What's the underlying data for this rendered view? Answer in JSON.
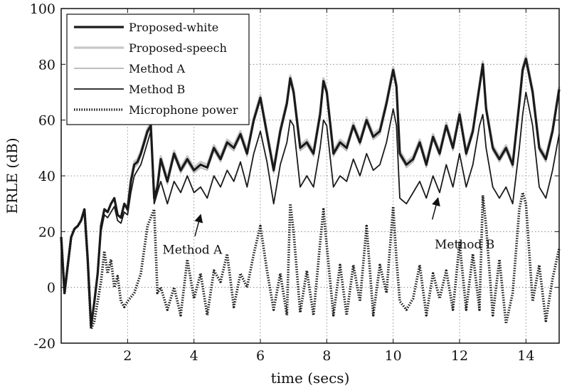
{
  "chart_data": {
    "type": "line",
    "xlabel": "time (secs)",
    "ylabel": "ERLE (dB)",
    "xlim": [
      0,
      15
    ],
    "ylim": [
      -20,
      100
    ],
    "xticks": [
      2,
      4,
      6,
      8,
      10,
      12,
      14
    ],
    "yticks": [
      -20,
      0,
      20,
      40,
      60,
      80,
      100
    ],
    "grid": true,
    "legend_position": "top-left",
    "series": [
      {
        "name": "Proposed-white",
        "color": "#1a1a1a",
        "style": "solid-thick",
        "x": [
          0,
          0.1,
          0.2,
          0.3,
          0.4,
          0.5,
          0.6,
          0.7,
          0.8,
          0.9,
          1.0,
          1.1,
          1.2,
          1.3,
          1.4,
          1.5,
          1.6,
          1.7,
          1.8,
          1.9,
          2.0,
          2.1,
          2.2,
          2.3,
          2.4,
          2.5,
          2.6,
          2.7,
          2.8,
          2.9,
          3.0,
          3.2,
          3.4,
          3.6,
          3.8,
          4.0,
          4.2,
          4.4,
          4.6,
          4.8,
          5.0,
          5.2,
          5.4,
          5.6,
          5.8,
          6.0,
          6.2,
          6.4,
          6.6,
          6.8,
          6.9,
          7.0,
          7.2,
          7.4,
          7.6,
          7.8,
          7.9,
          8.0,
          8.2,
          8.4,
          8.6,
          8.8,
          9.0,
          9.2,
          9.4,
          9.6,
          9.8,
          10.0,
          10.1,
          10.2,
          10.4,
          10.6,
          10.8,
          11.0,
          11.2,
          11.4,
          11.6,
          11.8,
          12.0,
          12.2,
          12.4,
          12.6,
          12.7,
          12.8,
          13.0,
          13.2,
          13.4,
          13.6,
          13.8,
          13.9,
          14.0,
          14.2,
          14.4,
          14.6,
          14.8,
          15.0
        ],
        "y": [
          18,
          -2,
          8,
          18,
          21,
          22,
          24,
          28,
          10,
          -14,
          -5,
          5,
          22,
          28,
          27,
          30,
          32,
          26,
          25,
          30,
          28,
          38,
          44,
          45,
          48,
          52,
          56,
          58,
          32,
          36,
          46,
          38,
          48,
          42,
          46,
          42,
          44,
          43,
          50,
          46,
          52,
          50,
          55,
          48,
          60,
          68,
          55,
          42,
          56,
          66,
          75,
          70,
          50,
          52,
          48,
          62,
          74,
          70,
          48,
          52,
          50,
          58,
          52,
          60,
          54,
          56,
          66,
          78,
          72,
          48,
          44,
          46,
          52,
          44,
          54,
          48,
          58,
          50,
          62,
          48,
          56,
          72,
          80,
          64,
          50,
          46,
          50,
          44,
          66,
          78,
          82,
          70,
          50,
          46,
          56,
          71
        ]
      },
      {
        "name": "Proposed-speech",
        "color": "#c8c8c8",
        "style": "solid-thick",
        "x": [
          0,
          0.1,
          0.2,
          0.3,
          0.4,
          0.5,
          0.6,
          0.7,
          0.8,
          0.9,
          1.0,
          1.1,
          1.2,
          1.3,
          1.4,
          1.5,
          1.6,
          1.7,
          1.8,
          1.9,
          2.0,
          2.1,
          2.2,
          2.3,
          2.4,
          2.5,
          2.6,
          2.7,
          2.8,
          2.9,
          3.0,
          3.2,
          3.4,
          3.6,
          3.8,
          4.0,
          4.2,
          4.4,
          4.6,
          4.8,
          5.0,
          5.2,
          5.4,
          5.6,
          5.8,
          6.0,
          6.2,
          6.4,
          6.6,
          6.8,
          6.9,
          7.0,
          7.2,
          7.4,
          7.6,
          7.8,
          7.9,
          8.0,
          8.2,
          8.4,
          8.6,
          8.8,
          9.0,
          9.2,
          9.4,
          9.6,
          9.8,
          10.0,
          10.1,
          10.2,
          10.4,
          10.6,
          10.8,
          11.0,
          11.2,
          11.4,
          11.6,
          11.8,
          12.0,
          12.2,
          12.4,
          12.6,
          12.7,
          12.8,
          13.0,
          13.2,
          13.4,
          13.6,
          13.8,
          13.9,
          14.0,
          14.2,
          14.4,
          14.6,
          14.8,
          15.0
        ],
        "y": [
          18,
          -2,
          8,
          18,
          21,
          22,
          24,
          28,
          10,
          -14,
          -5,
          5,
          22,
          28,
          27,
          30,
          32,
          26,
          25,
          30,
          29,
          39,
          45,
          46,
          49,
          53,
          57,
          59,
          33,
          37,
          47,
          39,
          49,
          43,
          47,
          43,
          45,
          44,
          51,
          47,
          53,
          51,
          56,
          49,
          61,
          69,
          56,
          43,
          57,
          67,
          76,
          71,
          51,
          53,
          49,
          63,
          75,
          71,
          49,
          53,
          51,
          59,
          53,
          61,
          55,
          57,
          67,
          79,
          73,
          49,
          45,
          47,
          53,
          45,
          55,
          49,
          59,
          51,
          63,
          49,
          57,
          73,
          81,
          65,
          51,
          47,
          51,
          45,
          67,
          79,
          83,
          71,
          51,
          47,
          57,
          72
        ]
      },
      {
        "name": "Method A",
        "color": "#b4b4b4",
        "style": "solid-thin",
        "x": [
          0,
          0.1,
          0.2,
          0.3,
          0.4,
          0.5,
          0.6,
          0.7,
          0.8,
          0.9,
          1.0,
          1.1,
          1.2,
          1.3,
          1.4,
          1.5,
          1.6,
          1.7,
          1.8,
          1.9,
          2.0,
          2.1,
          2.2,
          2.3,
          2.4,
          2.5,
          2.6,
          2.7,
          2.8,
          2.9,
          3.0,
          3.2,
          3.4,
          3.6,
          3.8,
          4.0,
          4.2,
          4.4,
          4.6,
          4.8,
          5.0,
          5.2,
          5.4,
          5.6,
          5.8,
          6.0,
          6.2,
          6.4,
          6.6,
          6.8,
          6.9,
          7.0,
          7.2,
          7.4,
          7.6,
          7.8,
          7.9,
          8.0,
          8.2,
          8.4,
          8.6,
          8.8,
          9.0,
          9.2,
          9.4,
          9.6,
          9.8,
          10.0,
          10.1,
          10.2,
          10.4,
          10.6,
          10.8,
          11.0,
          11.2,
          11.4,
          11.6,
          11.8,
          12.0,
          12.2,
          12.4,
          12.6,
          12.7,
          12.8,
          13.0,
          13.2,
          13.4,
          13.6,
          13.8,
          13.9,
          14.0,
          14.2,
          14.4,
          14.6,
          14.8,
          15.0
        ],
        "y": [
          18,
          -2,
          8,
          18,
          21,
          22,
          24,
          28,
          10,
          -14,
          -5,
          5,
          22,
          28,
          27,
          30,
          32,
          26,
          25,
          30,
          27,
          37,
          43,
          44,
          47,
          51,
          55,
          57,
          31,
          35,
          45,
          37,
          47,
          41,
          45,
          41,
          43,
          42,
          49,
          45,
          51,
          49,
          54,
          47,
          59,
          67,
          54,
          41,
          55,
          65,
          74,
          69,
          49,
          51,
          47,
          61,
          73,
          69,
          47,
          51,
          49,
          57,
          51,
          59,
          53,
          55,
          65,
          77,
          71,
          47,
          43,
          45,
          51,
          43,
          53,
          47,
          57,
          49,
          61,
          47,
          55,
          71,
          79,
          63,
          49,
          45,
          49,
          43,
          65,
          77,
          81,
          69,
          49,
          45,
          55,
          70
        ]
      },
      {
        "name": "Method B",
        "color": "#1a1a1a",
        "style": "solid-thin",
        "x": [
          0,
          0.1,
          0.2,
          0.3,
          0.4,
          0.5,
          0.6,
          0.7,
          0.8,
          0.9,
          1.0,
          1.1,
          1.2,
          1.3,
          1.4,
          1.5,
          1.6,
          1.7,
          1.8,
          1.9,
          2.0,
          2.1,
          2.2,
          2.3,
          2.4,
          2.5,
          2.6,
          2.7,
          2.8,
          2.9,
          3.0,
          3.2,
          3.4,
          3.6,
          3.8,
          4.0,
          4.2,
          4.4,
          4.6,
          4.8,
          5.0,
          5.2,
          5.4,
          5.6,
          5.8,
          6.0,
          6.2,
          6.4,
          6.6,
          6.8,
          6.9,
          7.0,
          7.2,
          7.4,
          7.6,
          7.8,
          7.9,
          8.0,
          8.2,
          8.4,
          8.6,
          8.8,
          9.0,
          9.2,
          9.4,
          9.6,
          9.8,
          10.0,
          10.1,
          10.2,
          10.4,
          10.6,
          10.8,
          11.0,
          11.2,
          11.4,
          11.6,
          11.8,
          12.0,
          12.2,
          12.4,
          12.6,
          12.7,
          12.8,
          13.0,
          13.2,
          13.4,
          13.6,
          13.8,
          13.9,
          14.0,
          14.2,
          14.4,
          14.6,
          14.8,
          15.0
        ],
        "y": [
          18,
          -2,
          8,
          18,
          21,
          22,
          24,
          28,
          10,
          -14,
          -5,
          5,
          20,
          26,
          25,
          27,
          29,
          24,
          23,
          27,
          26,
          34,
          40,
          42,
          44,
          48,
          52,
          56,
          30,
          34,
          38,
          30,
          38,
          34,
          40,
          34,
          36,
          32,
          40,
          36,
          42,
          38,
          45,
          36,
          48,
          56,
          45,
          30,
          44,
          52,
          60,
          58,
          36,
          40,
          36,
          50,
          60,
          58,
          36,
          40,
          38,
          46,
          40,
          48,
          42,
          44,
          52,
          64,
          58,
          32,
          30,
          34,
          38,
          32,
          40,
          34,
          44,
          36,
          48,
          36,
          44,
          58,
          62,
          50,
          36,
          32,
          36,
          30,
          50,
          62,
          70,
          58,
          36,
          32,
          42,
          55
        ]
      },
      {
        "name": "Microphone power",
        "color": "#1a1a1a",
        "style": "dotted-thick",
        "x": [
          0,
          0.1,
          0.2,
          0.3,
          0.4,
          0.5,
          0.6,
          0.7,
          0.8,
          0.9,
          1.0,
          1.1,
          1.2,
          1.3,
          1.4,
          1.5,
          1.6,
          1.7,
          1.8,
          1.9,
          2.0,
          2.2,
          2.4,
          2.6,
          2.8,
          2.9,
          3.0,
          3.2,
          3.4,
          3.6,
          3.8,
          4.0,
          4.2,
          4.4,
          4.6,
          4.8,
          5.0,
          5.2,
          5.4,
          5.6,
          5.8,
          6.0,
          6.2,
          6.4,
          6.6,
          6.8,
          6.9,
          7.0,
          7.2,
          7.4,
          7.6,
          7.8,
          7.9,
          8.0,
          8.2,
          8.4,
          8.6,
          8.8,
          9.0,
          9.2,
          9.4,
          9.6,
          9.8,
          10.0,
          10.1,
          10.2,
          10.4,
          10.6,
          10.8,
          11.0,
          11.2,
          11.4,
          11.6,
          11.8,
          12.0,
          12.2,
          12.4,
          12.6,
          12.7,
          12.8,
          13.0,
          13.2,
          13.4,
          13.6,
          13.8,
          13.9,
          14.0,
          14.2,
          14.4,
          14.6,
          14.8,
          15.0
        ],
        "y": [
          18,
          -2,
          8,
          18,
          21,
          22,
          24,
          28,
          10,
          -15,
          -12,
          -5,
          2,
          13,
          5,
          10,
          0,
          4,
          -5,
          -7,
          -5,
          -2,
          5,
          22,
          28,
          -2,
          0,
          -8,
          0,
          -10,
          10,
          -4,
          5,
          -10,
          6,
          2,
          12,
          -7,
          5,
          0,
          12,
          22,
          6,
          -8,
          5,
          -10,
          30,
          20,
          -9,
          6,
          -10,
          16,
          28,
          15,
          -10,
          8,
          -10,
          8,
          -5,
          22,
          -10,
          8,
          -2,
          29,
          10,
          -5,
          -8,
          -4,
          8,
          -10,
          5,
          -4,
          6,
          -8,
          16,
          -8,
          12,
          -8,
          33,
          22,
          -10,
          10,
          -13,
          -2,
          28,
          34,
          30,
          -5,
          8,
          -12,
          3,
          14
        ]
      }
    ],
    "annotations": [
      {
        "text": "Method A",
        "x": 4.2,
        "y": 26,
        "text_x": 3.05,
        "text_y": 12
      },
      {
        "text": "Method B",
        "x": 11.35,
        "y": 32,
        "text_x": 11.25,
        "text_y": 14
      }
    ]
  }
}
